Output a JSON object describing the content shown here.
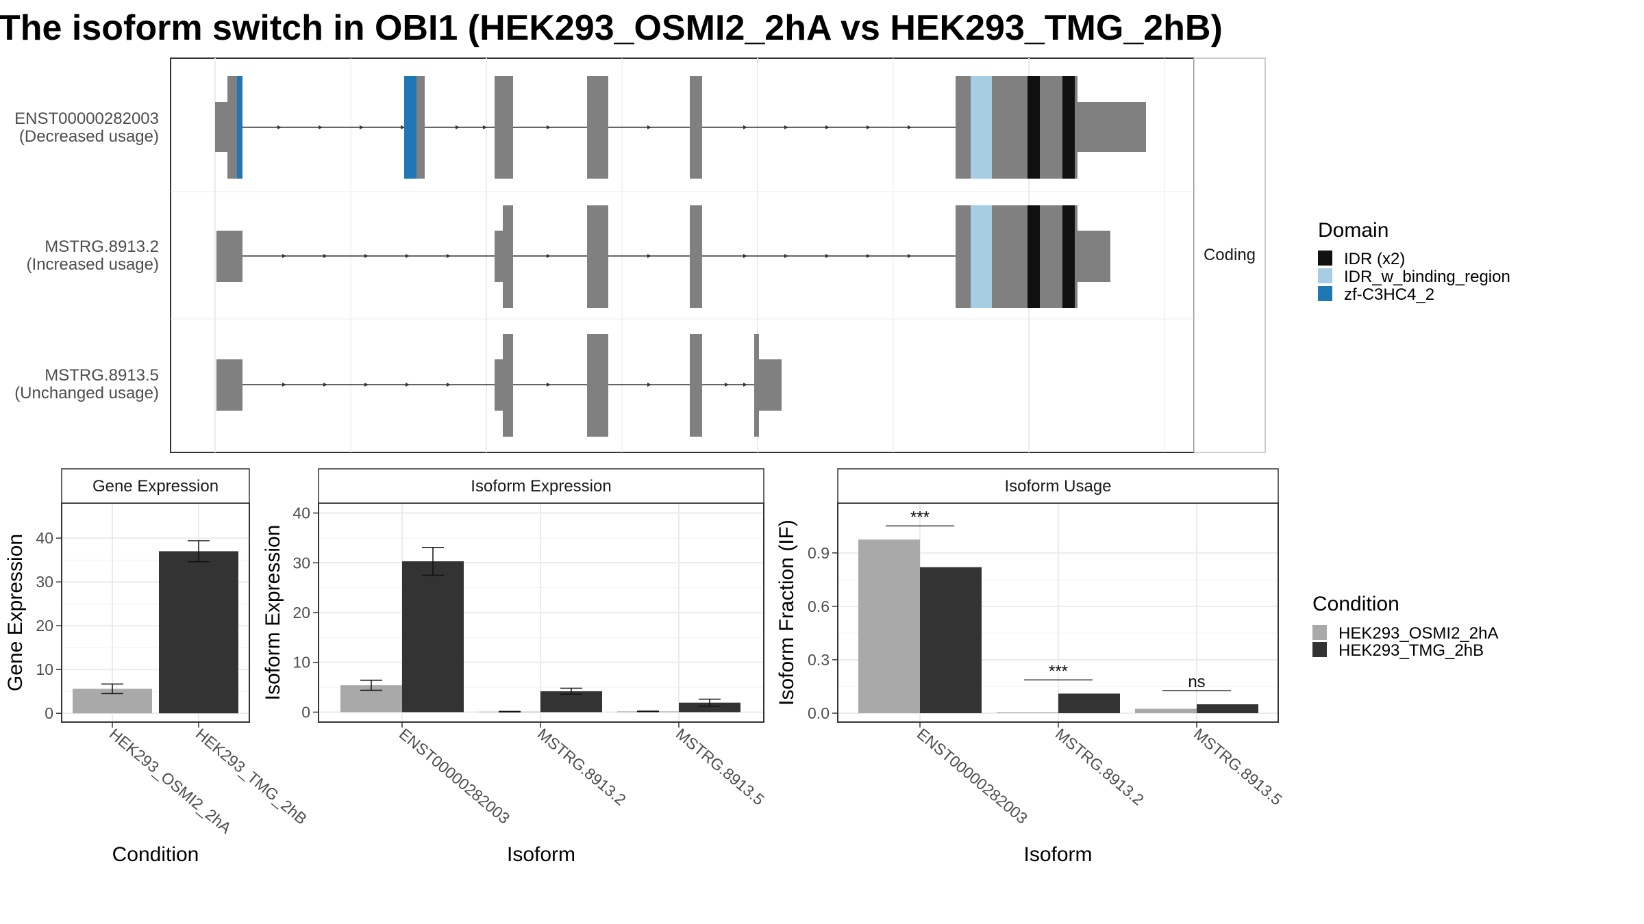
{
  "title": "The isoform switch in OBI1 (HEK293_OSMI2_2hA vs HEK293_TMG_2hB)",
  "colors": {
    "exon": "#808080",
    "idr": "#111111",
    "idr_binding": "#a6cde2",
    "zf": "#1f78b4",
    "cond1": "#a9a9a9",
    "cond2": "#333333",
    "grid": "#ebebeb",
    "panel_border": "#333333"
  },
  "transcript_panel": {
    "strip_label": "Coding",
    "transcripts": [
      {
        "label_line1": "ENST00000282003",
        "label_line2": "(Decreased usage)"
      },
      {
        "label_line1": "MSTRG.8913.2",
        "label_line2": "(Increased usage)"
      },
      {
        "label_line1": "MSTRG.8913.5",
        "label_line2": "(Unchanged usage)"
      }
    ]
  },
  "domain_legend": {
    "title": "Domain",
    "items": [
      {
        "label": "IDR (x2)",
        "color": "#111111"
      },
      {
        "label": "IDR_w_binding_region",
        "color": "#a6cde2"
      },
      {
        "label": "zf-C3HC4_2",
        "color": "#1f78b4"
      }
    ]
  },
  "condition_legend": {
    "title": "Condition",
    "items": [
      {
        "label": "HEK293_OSMI2_2hA",
        "color": "#a9a9a9"
      },
      {
        "label": "HEK293_TMG_2hB",
        "color": "#333333"
      }
    ]
  },
  "chart_data": [
    {
      "type": "bar",
      "title": "Gene Expression",
      "xlabel": "Condition",
      "ylabel": "Gene Expression",
      "categories": [
        "HEK293_OSMI2_2hA",
        "HEK293_TMG_2hB"
      ],
      "values": [
        5.6,
        37.0
      ],
      "errors": [
        1.1,
        2.4
      ],
      "ylim": [
        -2,
        48
      ],
      "yticks": [
        0,
        10,
        20,
        30,
        40
      ]
    },
    {
      "type": "bar",
      "title": "Isoform Expression",
      "xlabel": "Isoform",
      "ylabel": "Isoform Expression",
      "categories": [
        "ENST00000282003",
        "MSTRG.8913.2",
        "MSTRG.8913.5"
      ],
      "series": [
        {
          "name": "HEK293_OSMI2_2hA",
          "values": [
            5.4,
            0.1,
            0.15
          ],
          "errors": [
            1.0,
            0.05,
            0.05
          ]
        },
        {
          "name": "HEK293_TMG_2hB",
          "values": [
            30.3,
            4.2,
            1.9
          ],
          "errors": [
            2.8,
            0.6,
            0.7
          ]
        }
      ],
      "ylim": [
        -2,
        42
      ],
      "yticks": [
        0,
        10,
        20,
        30,
        40
      ]
    },
    {
      "type": "bar",
      "title": "Isoform Usage",
      "xlabel": "Isoform",
      "ylabel": "Isoform Fraction (IF)",
      "categories": [
        "ENST00000282003",
        "MSTRG.8913.2",
        "MSTRG.8913.5"
      ],
      "series": [
        {
          "name": "HEK293_OSMI2_2hA",
          "values": [
            0.975,
            0.005,
            0.025
          ]
        },
        {
          "name": "HEK293_TMG_2hB",
          "values": [
            0.82,
            0.11,
            0.05
          ]
        }
      ],
      "significance": [
        "***",
        "***",
        "ns"
      ],
      "ylim": [
        -0.05,
        1.18
      ],
      "yticks": [
        0.0,
        0.3,
        0.6,
        0.9
      ]
    }
  ]
}
